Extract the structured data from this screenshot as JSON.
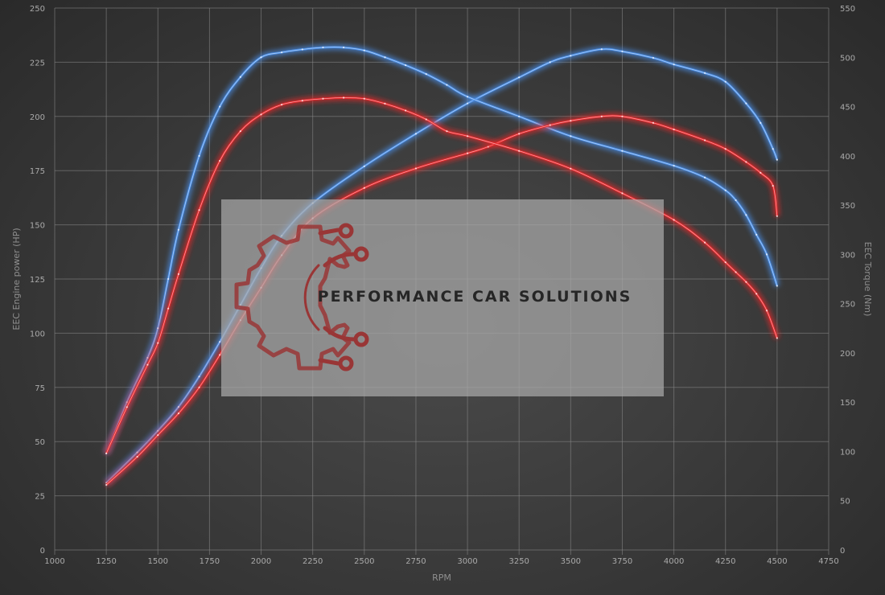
{
  "chart_data": {
    "type": "line",
    "xlabel": "RPM",
    "ylabel_left": "EEC Engine power (HP)",
    "ylabel_right": "EEC Torque (Nm)",
    "xlim": [
      1000,
      4750
    ],
    "ylim_left": [
      0,
      250
    ],
    "ylim_right": [
      0,
      550
    ],
    "x_ticks": [
      1000,
      1250,
      1500,
      1750,
      2000,
      2250,
      2500,
      2750,
      3000,
      3250,
      3500,
      3750,
      4000,
      4250,
      4500,
      4750
    ],
    "y_left_ticks": [
      0,
      25,
      50,
      75,
      100,
      125,
      150,
      175,
      200,
      225,
      250
    ],
    "y_right_ticks": [
      0,
      50,
      100,
      150,
      200,
      250,
      300,
      350,
      400,
      450,
      500,
      550
    ],
    "grid": true,
    "series": [
      {
        "color": "#4a8fe8",
        "axis": "left",
        "x": [
          1250,
          1400,
          1500,
          1600,
          1700,
          1800,
          1900,
          2000,
          2100,
          2250,
          2500,
          2750,
          3000,
          3250,
          3400,
          3500,
          3650,
          3750,
          3900,
          4000,
          4150,
          4250,
          4350,
          4420,
          4480,
          4500
        ],
        "values": [
          31,
          45,
          55,
          66,
          80,
          96,
          113,
          130,
          145,
          160,
          177,
          192,
          206,
          218,
          225,
          228,
          231,
          230,
          227,
          224,
          220,
          216,
          206,
          197,
          185,
          180
        ]
      },
      {
        "color": "#4a8fe8",
        "axis": "right",
        "x": [
          1250,
          1350,
          1450,
          1500,
          1550,
          1600,
          1700,
          1800,
          1900,
          2000,
          2100,
          2200,
          2300,
          2400,
          2500,
          2600,
          2700,
          2800,
          2900,
          3000,
          3250,
          3500,
          3750,
          4000,
          4150,
          4250,
          4300,
          4350,
          4400,
          4450,
          4500
        ],
        "values": [
          98,
          150,
          195,
          225,
          275,
          325,
          400,
          450,
          480,
          500,
          505,
          508,
          510,
          510,
          507,
          500,
          492,
          483,
          472,
          460,
          440,
          420,
          405,
          390,
          378,
          365,
          355,
          340,
          320,
          300,
          268
        ]
      },
      {
        "color": "#e8262a",
        "axis": "left",
        "x": [
          1250,
          1400,
          1500,
          1600,
          1700,
          1800,
          1900,
          2000,
          2100,
          2250,
          2500,
          2750,
          3000,
          3100,
          3250,
          3400,
          3500,
          3650,
          3750,
          3900,
          4000,
          4150,
          4250,
          4350,
          4420,
          4480,
          4500
        ],
        "values": [
          30,
          43,
          53,
          63,
          75,
          90,
          106,
          121,
          136,
          153,
          167,
          176,
          183,
          186,
          192,
          196,
          198,
          200,
          200,
          197,
          194,
          189,
          185,
          179,
          174,
          168,
          154
        ]
      },
      {
        "color": "#e8262a",
        "axis": "right",
        "x": [
          1250,
          1350,
          1450,
          1500,
          1550,
          1600,
          1700,
          1800,
          1900,
          2000,
          2100,
          2200,
          2300,
          2400,
          2500,
          2600,
          2700,
          2800,
          2900,
          3000,
          3250,
          3500,
          3750,
          4000,
          4150,
          4250,
          4300,
          4350,
          4400,
          4450,
          4500
        ],
        "values": [
          98,
          145,
          188,
          210,
          245,
          280,
          345,
          395,
          425,
          442,
          452,
          456,
          458,
          459,
          458,
          453,
          446,
          437,
          425,
          420,
          405,
          387,
          362,
          335,
          312,
          292,
          282,
          272,
          260,
          243,
          215
        ]
      }
    ]
  },
  "watermark": {
    "text": "PERFORMANCE CAR SOLUTIONS",
    "icon": "gear-circuit-icon",
    "icon_color": "#9b2d2d"
  }
}
